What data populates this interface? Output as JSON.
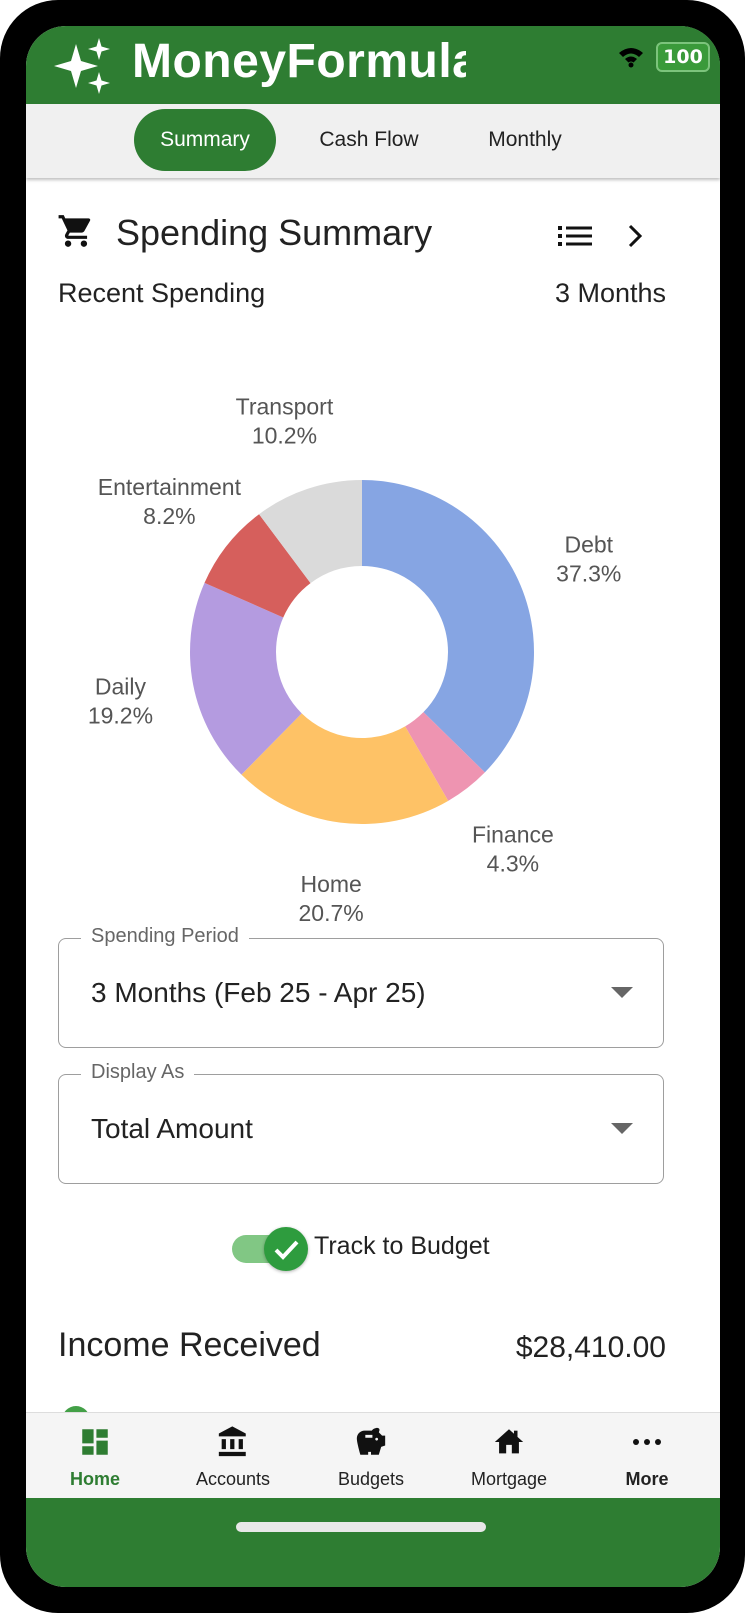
{
  "app": {
    "title": "MoneyFormula",
    "battery": "100",
    "accent_color": "#2e7d32"
  },
  "tabs": [
    {
      "label": "Summary",
      "active": true
    },
    {
      "label": "Cash Flow",
      "active": false
    },
    {
      "label": "Monthly",
      "active": false
    }
  ],
  "card": {
    "title": "Spending Summary",
    "icon": "shopping-cart-icon",
    "recent_label": "Recent Spending",
    "period_label": "3 Months"
  },
  "chart_data": {
    "type": "pie",
    "donut": true,
    "slices": [
      {
        "name": "Debt",
        "label": "37.3%",
        "value": 37.3,
        "color": "#86a5e3"
      },
      {
        "name": "Finance",
        "label": "4.3%",
        "value": 4.3,
        "color": "#ee94b1"
      },
      {
        "name": "Home",
        "label": "20.7%",
        "value": 20.7,
        "color": "#fec266"
      },
      {
        "name": "Daily",
        "label": "19.2%",
        "value": 19.2,
        "color": "#b49be0"
      },
      {
        "name": "Entertainment",
        "label": "8.2%",
        "value": 8.2,
        "color": "#d65f5c"
      },
      {
        "name": "Transport",
        "label": "10.2%",
        "value": 10.2,
        "color": "#dadada"
      }
    ]
  },
  "spending_period": {
    "legend": "Spending Period",
    "value": "3 Months (Feb 25 - Apr 25)"
  },
  "display_as": {
    "legend": "Display As",
    "value": "Total Amount"
  },
  "track_to_budget": {
    "label": "Track to Budget",
    "checked": true
  },
  "income": {
    "title": "Income Received",
    "amount": "$28,410.00"
  },
  "bottom_nav": [
    {
      "label": "Home",
      "icon": "dashboard-icon",
      "active": true
    },
    {
      "label": "Accounts",
      "icon": "bank-icon",
      "active": false
    },
    {
      "label": "Budgets",
      "icon": "piggy-bank-icon",
      "active": false
    },
    {
      "label": "Mortgage",
      "icon": "house-icon",
      "active": false
    },
    {
      "label": "More",
      "icon": "more-dots-icon",
      "active": false
    }
  ]
}
